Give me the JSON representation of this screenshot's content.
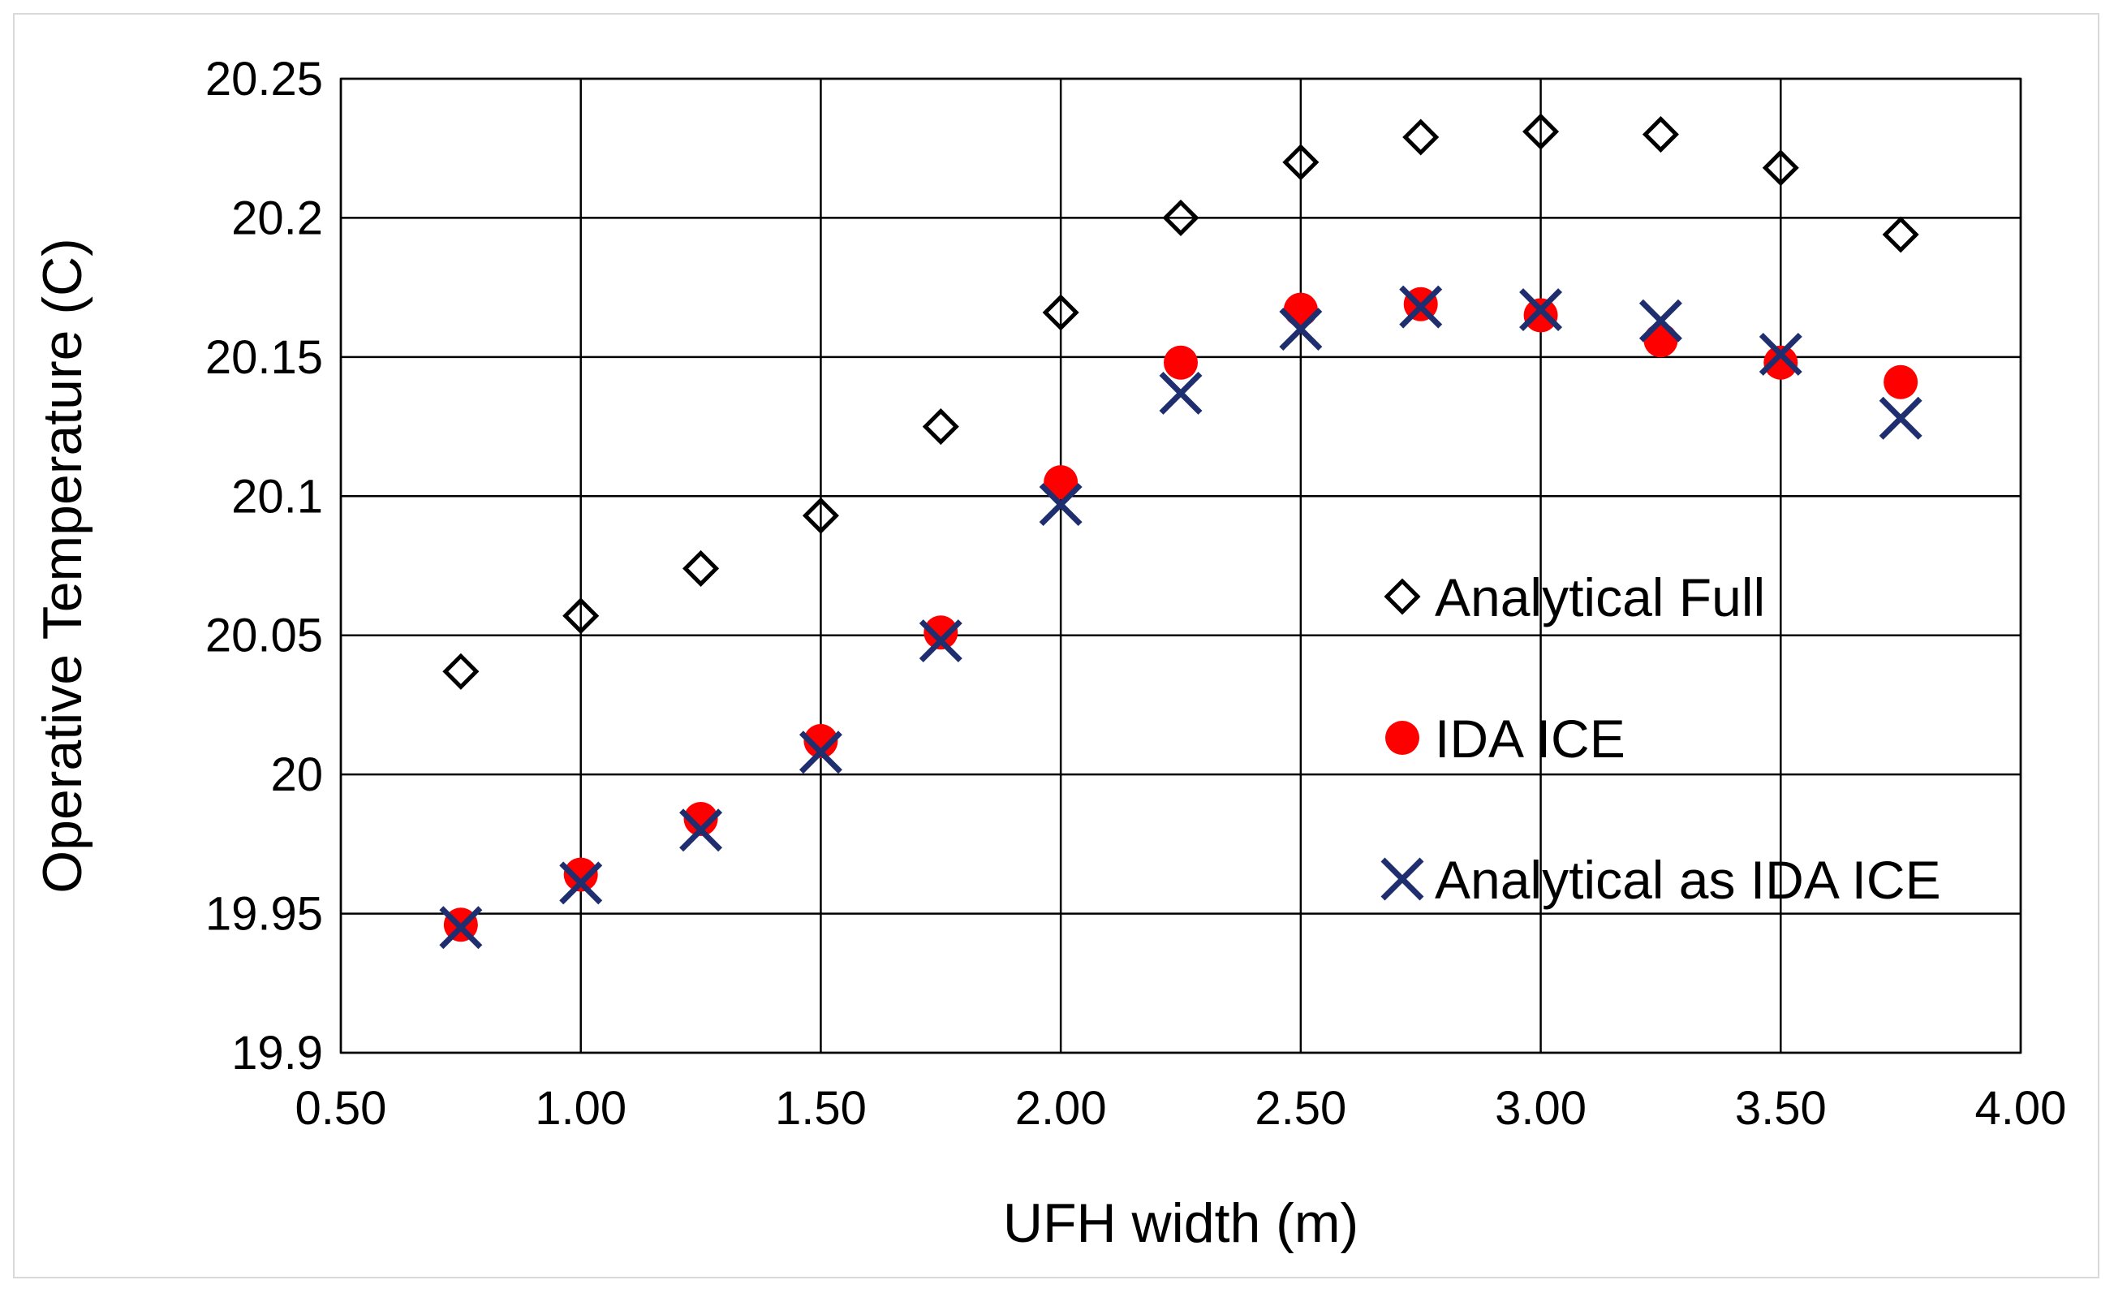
{
  "chart_data": {
    "type": "scatter",
    "title": "",
    "xlabel": "UFH width (m)",
    "ylabel": "Operative Temperature (C)",
    "xlim": [
      0.5,
      4.0
    ],
    "ylim": [
      19.9,
      20.25
    ],
    "xticks": [
      "0.50",
      "1.00",
      "1.50",
      "2.00",
      "2.50",
      "3.00",
      "3.50",
      "4.00"
    ],
    "yticks": [
      "19.9",
      "19.95",
      "20",
      "20.05",
      "20.1",
      "20.15",
      "20.2",
      "20.25"
    ],
    "grid": true,
    "legend_position": "right-center",
    "x": [
      0.75,
      1.0,
      1.25,
      1.5,
      1.75,
      2.0,
      2.25,
      2.5,
      2.75,
      3.0,
      3.25,
      3.5,
      3.75
    ],
    "series": [
      {
        "name": "Analytical Full",
        "marker": "diamond-open",
        "color": "#000000",
        "values": [
          20.037,
          20.057,
          20.074,
          20.093,
          20.125,
          20.166,
          20.2,
          20.22,
          20.229,
          20.231,
          20.23,
          20.218,
          20.194
        ]
      },
      {
        "name": "IDA ICE",
        "marker": "circle-filled",
        "color": "#ff0000",
        "values": [
          19.946,
          19.964,
          19.984,
          20.012,
          20.051,
          20.105,
          20.148,
          20.167,
          20.169,
          20.165,
          20.156,
          20.148,
          20.141
        ]
      },
      {
        "name": "Analytical as IDA ICE",
        "marker": "x",
        "color": "#1f2e6e",
        "values": [
          19.945,
          19.961,
          19.98,
          20.008,
          20.048,
          20.097,
          20.137,
          20.16,
          20.168,
          20.167,
          20.163,
          20.151,
          20.128
        ]
      }
    ]
  }
}
